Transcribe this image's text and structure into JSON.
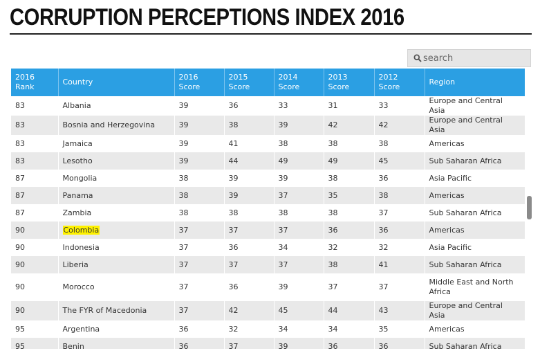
{
  "header": {
    "title": "CORRUPTION PERCEPTIONS INDEX 2016"
  },
  "search": {
    "placeholder": "search",
    "icon": "search-icon"
  },
  "table": {
    "columns": [
      {
        "line1": "2016",
        "line2": "Rank"
      },
      {
        "line1": "Country",
        "line2": ""
      },
      {
        "line1": "2016",
        "line2": "Score"
      },
      {
        "line1": "2015",
        "line2": "Score"
      },
      {
        "line1": "2014",
        "line2": "Score"
      },
      {
        "line1": "2013",
        "line2": "Score"
      },
      {
        "line1": "2012",
        "line2": "Score"
      },
      {
        "line1": "Region",
        "line2": ""
      }
    ],
    "rows": [
      [
        "83",
        "Albania",
        "39",
        "36",
        "33",
        "31",
        "33",
        "Europe and Central Asia"
      ],
      [
        "83",
        "Bosnia and Herzegovina",
        "39",
        "38",
        "39",
        "42",
        "42",
        "Europe and Central Asia"
      ],
      [
        "83",
        "Jamaica",
        "39",
        "41",
        "38",
        "38",
        "38",
        "Americas"
      ],
      [
        "83",
        "Lesotho",
        "39",
        "44",
        "49",
        "49",
        "45",
        "Sub Saharan Africa"
      ],
      [
        "87",
        "Mongolia",
        "38",
        "39",
        "39",
        "38",
        "36",
        "Asia Pacific"
      ],
      [
        "87",
        "Panama",
        "38",
        "39",
        "37",
        "35",
        "38",
        "Americas"
      ],
      [
        "87",
        "Zambia",
        "38",
        "38",
        "38",
        "38",
        "37",
        "Sub Saharan Africa"
      ],
      [
        "90",
        "Colombia",
        "37",
        "37",
        "37",
        "36",
        "36",
        "Americas"
      ],
      [
        "90",
        "Indonesia",
        "37",
        "36",
        "34",
        "32",
        "32",
        "Asia Pacific"
      ],
      [
        "90",
        "Liberia",
        "37",
        "37",
        "37",
        "38",
        "41",
        "Sub Saharan Africa"
      ],
      [
        "90",
        "Morocco",
        "37",
        "36",
        "39",
        "37",
        "37",
        "Middle East and North Africa"
      ],
      [
        "90",
        "The FYR of Macedonia",
        "37",
        "42",
        "45",
        "44",
        "43",
        "Europe and Central Asia"
      ],
      [
        "95",
        "Argentina",
        "36",
        "32",
        "34",
        "34",
        "35",
        "Americas"
      ],
      [
        "95",
        "Benin",
        "36",
        "37",
        "39",
        "36",
        "36",
        "Sub Saharan Africa"
      ]
    ],
    "highlighted_country": "Colombia",
    "header_color": "#2b9fe3",
    "highlight_color": "#fff200"
  }
}
